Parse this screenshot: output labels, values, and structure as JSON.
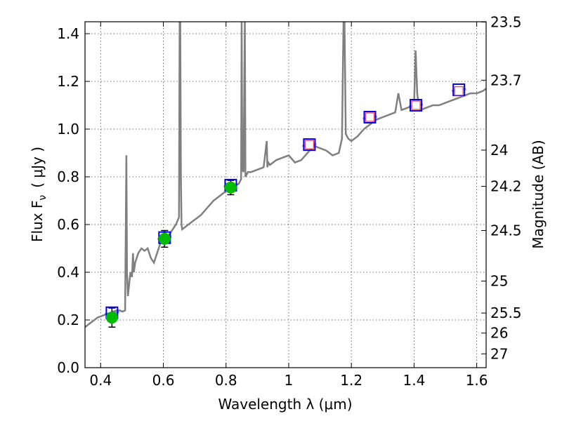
{
  "chart_data": {
    "type": "line",
    "xlabel": "Wavelength  λ (μm)",
    "ylabel_left": "Flux  F",
    "ylabel_left_sub": "ν",
    "ylabel_left_unit": "( μJy )",
    "ylabel_right": "Magnitude (AB)",
    "xlim": [
      0.35,
      1.63
    ],
    "ylim": [
      0.0,
      1.45
    ],
    "grid": true,
    "x_ticks": [
      0.4,
      0.6,
      0.8,
      1.0,
      1.2,
      1.4,
      1.6
    ],
    "x_tick_labels": [
      "0.4",
      "0.6",
      "0.8",
      "1",
      "1.2",
      "1.4",
      "1.6"
    ],
    "y_ticks": [
      0.0,
      0.2,
      0.4,
      0.6,
      0.8,
      1.0,
      1.2,
      1.4
    ],
    "y_tick_labels": [
      "0.0",
      "0.2",
      "0.4",
      "0.6",
      "0.8",
      "1.0",
      "1.2",
      "1.4"
    ],
    "right_ticks": [
      {
        "flux": 1.449,
        "label": "23.5"
      },
      {
        "flux": 1.205,
        "label": "23.7"
      },
      {
        "flux": 0.912,
        "label": "24"
      },
      {
        "flux": 0.76,
        "label": "24.2"
      },
      {
        "flux": 0.575,
        "label": "24.5"
      },
      {
        "flux": 0.363,
        "label": "25"
      },
      {
        "flux": 0.229,
        "label": "25.5"
      },
      {
        "flux": 0.145,
        "label": "26"
      },
      {
        "flux": 0.058,
        "label": "27"
      }
    ],
    "colors": {
      "spectrum": "#808080",
      "model_band": "#5555dd",
      "model_square": "#0000ee",
      "observed_point": "#00bb00",
      "observed_error": "#000000",
      "predicted_square": "#ee4455"
    },
    "series": [
      {
        "name": "spectrum",
        "x": [
          0.35,
          0.36,
          0.37,
          0.38,
          0.39,
          0.4,
          0.41,
          0.42,
          0.43,
          0.44,
          0.45,
          0.46,
          0.47,
          0.478,
          0.482,
          0.484,
          0.487,
          0.49,
          0.495,
          0.5,
          0.503,
          0.506,
          0.51,
          0.52,
          0.53,
          0.54,
          0.55,
          0.56,
          0.57,
          0.58,
          0.59,
          0.6,
          0.62,
          0.64,
          0.65,
          0.652,
          0.654,
          0.656,
          0.658,
          0.66,
          0.67,
          0.68,
          0.7,
          0.72,
          0.74,
          0.76,
          0.78,
          0.8,
          0.82,
          0.84,
          0.848,
          0.85,
          0.852,
          0.856,
          0.86,
          0.862,
          0.866,
          0.87,
          0.88,
          0.9,
          0.92,
          0.93,
          0.932,
          0.935,
          0.94,
          0.96,
          0.98,
          1.0,
          1.02,
          1.04,
          1.06,
          1.08,
          1.1,
          1.12,
          1.14,
          1.16,
          1.17,
          1.175,
          1.178,
          1.182,
          1.19,
          1.2,
          1.22,
          1.24,
          1.26,
          1.28,
          1.3,
          1.32,
          1.34,
          1.35,
          1.36,
          1.38,
          1.4,
          1.405,
          1.41,
          1.415,
          1.42,
          1.44,
          1.46,
          1.48,
          1.5,
          1.52,
          1.54,
          1.56,
          1.58,
          1.6,
          1.62,
          1.63
        ],
        "y": [
          0.17,
          0.18,
          0.19,
          0.2,
          0.21,
          0.215,
          0.22,
          0.225,
          0.23,
          0.235,
          0.24,
          0.24,
          0.235,
          0.24,
          0.89,
          0.4,
          0.3,
          0.34,
          0.4,
          0.38,
          0.48,
          0.4,
          0.44,
          0.48,
          0.5,
          0.49,
          0.5,
          0.46,
          0.44,
          0.48,
          0.52,
          0.54,
          0.56,
          0.6,
          0.63,
          1.45,
          1.45,
          0.8,
          0.6,
          0.58,
          0.59,
          0.6,
          0.62,
          0.64,
          0.67,
          0.7,
          0.72,
          0.74,
          0.76,
          0.77,
          0.79,
          1.45,
          0.83,
          0.82,
          1.45,
          0.8,
          0.81,
          0.82,
          0.82,
          0.83,
          0.84,
          0.95,
          0.84,
          0.86,
          0.85,
          0.87,
          0.88,
          0.89,
          0.86,
          0.87,
          0.9,
          0.93,
          0.92,
          0.91,
          0.89,
          0.9,
          0.96,
          1.45,
          1.45,
          0.98,
          0.96,
          0.95,
          0.97,
          1.0,
          1.02,
          1.04,
          1.05,
          1.06,
          1.07,
          1.15,
          1.08,
          1.09,
          1.1,
          1.33,
          1.15,
          1.1,
          1.08,
          1.09,
          1.1,
          1.1,
          1.11,
          1.12,
          1.13,
          1.14,
          1.15,
          1.15,
          1.16,
          1.17
        ]
      },
      {
        "name": "observed",
        "x": [
          0.436,
          0.604,
          0.815
        ],
        "y": [
          0.21,
          0.54,
          0.755
        ],
        "err": [
          0.04,
          0.035,
          0.03
        ]
      },
      {
        "name": "model_photometry",
        "x": [
          0.436,
          0.604,
          0.815,
          1.066,
          1.259,
          1.406,
          1.543
        ],
        "y": [
          0.23,
          0.545,
          0.765,
          0.935,
          1.05,
          1.1,
          1.165
        ]
      },
      {
        "name": "predicted",
        "x": [
          1.066,
          1.259,
          1.406,
          1.543
        ],
        "y": [
          0.935,
          1.05,
          1.1,
          1.16
        ]
      }
    ]
  }
}
